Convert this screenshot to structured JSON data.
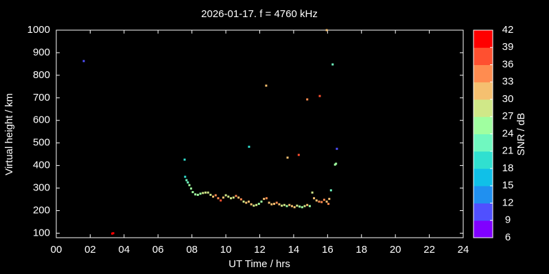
{
  "chart_data": {
    "type": "scatter",
    "title": "2026-01-17. f = 4760 kHz",
    "x_label": "UT Time / hrs",
    "y_label": "Virtual height / km",
    "xlim": [
      0,
      24
    ],
    "xticks": [
      {
        "value": 0,
        "label": "00"
      },
      {
        "value": 2,
        "label": "02"
      },
      {
        "value": 4,
        "label": "04"
      },
      {
        "value": 6,
        "label": "06"
      },
      {
        "value": 8,
        "label": "08"
      },
      10,
      12,
      14,
      16,
      18,
      20,
      22,
      24
    ],
    "ylim": [
      80,
      1000
    ],
    "yticks": [
      100,
      200,
      300,
      400,
      500,
      600,
      700,
      800,
      900,
      1000
    ],
    "colorbar": {
      "label": "SNR / dB",
      "lim": [
        6,
        42
      ],
      "ticks": [
        6,
        9,
        12,
        15,
        18,
        21,
        24,
        27,
        30,
        33,
        36,
        39,
        42
      ],
      "colors": [
        "#8000ff",
        "#5050ff",
        "#2090f0",
        "#10c0e8",
        "#30e0d0",
        "#70f8c0",
        "#a0ffa0",
        "#d0e888",
        "#f5c070",
        "#ff8c50",
        "#ff5030",
        "#ff0000"
      ]
    },
    "x": [
      1.62,
      3.3,
      3.36,
      7.57,
      7.6,
      7.68,
      7.76,
      7.85,
      7.95,
      8.05,
      8.2,
      8.35,
      8.5,
      8.65,
      8.8,
      8.95,
      9.1,
      9.25,
      9.4,
      9.55,
      9.7,
      9.85,
      10.0,
      10.15,
      10.3,
      10.45,
      10.6,
      10.75,
      10.9,
      11.05,
      11.2,
      11.35,
      11.5,
      11.65,
      11.8,
      11.95,
      12.1,
      12.25,
      12.4,
      12.55,
      12.7,
      12.85,
      13.0,
      13.15,
      13.3,
      13.45,
      13.6,
      13.75,
      13.9,
      14.05,
      14.2,
      14.35,
      14.5,
      14.65,
      14.8,
      14.95,
      15.1,
      15.2,
      15.35,
      15.5,
      15.65,
      15.8,
      15.95,
      16.05,
      16.1,
      16.2,
      16.44,
      16.5,
      11.37,
      12.38,
      13.64,
      14.3,
      14.8,
      15.54,
      15.95,
      16.3,
      16.55
    ],
    "y": [
      863,
      98,
      100,
      426,
      350,
      335,
      325,
      313,
      298,
      282,
      272,
      270,
      275,
      278,
      280,
      280,
      270,
      262,
      268,
      255,
      245,
      258,
      268,
      262,
      255,
      258,
      265,
      258,
      250,
      240,
      235,
      240,
      228,
      222,
      225,
      230,
      240,
      252,
      255,
      235,
      228,
      230,
      235,
      228,
      222,
      225,
      220,
      225,
      220,
      215,
      222,
      218,
      215,
      220,
      225,
      220,
      280,
      255,
      245,
      240,
      238,
      248,
      240,
      230,
      252,
      290,
      404,
      408,
      483,
      754,
      435,
      447,
      693,
      708,
      1000,
      848,
      474
    ],
    "snr": [
      10,
      41,
      41,
      20,
      20,
      21,
      22,
      24,
      26,
      26,
      25,
      26,
      26,
      27,
      27,
      27,
      29,
      32,
      35,
      33,
      36,
      30,
      28,
      27,
      29,
      28,
      34,
      31,
      33,
      28,
      30,
      31,
      30,
      29,
      28,
      26,
      25,
      31,
      33,
      30,
      31,
      32,
      34,
      30,
      29,
      28,
      26,
      31,
      32,
      30,
      27,
      26,
      24,
      28,
      30,
      26,
      29,
      30,
      32,
      33,
      34,
      33,
      31,
      35,
      32,
      22,
      25,
      26,
      18,
      30,
      30,
      38,
      33,
      36,
      31,
      22,
      11
    ]
  }
}
